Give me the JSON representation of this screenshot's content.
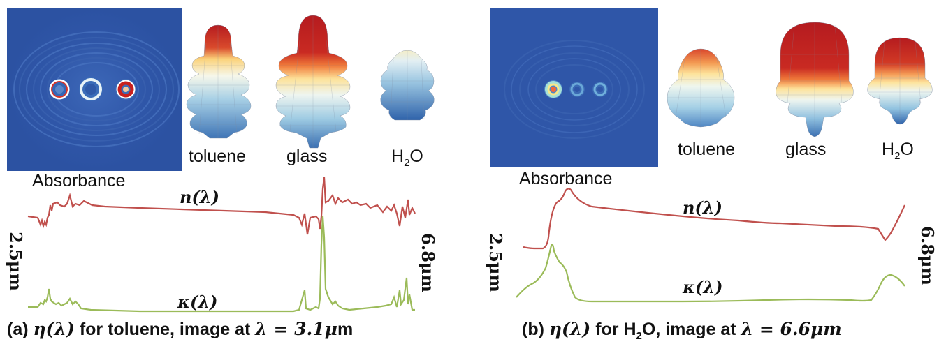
{
  "panel_a": {
    "absorbance_label": "Absorbance",
    "materials": [
      "toluene",
      "glass",
      "H",
      "O"
    ],
    "water_sub": "2",
    "left_wavelength": "2.5μm",
    "right_wavelength": "6.8μm",
    "n_label": "n(λ)",
    "k_label": "κ(λ)",
    "caption_prefix": "(a) ",
    "caption_eta": "η(λ)",
    "caption_mid": " for toluene, image at ",
    "caption_eq": "λ = 3.1μ",
    "caption_unit": "m"
  },
  "panel_b": {
    "absorbance_label": "Absorbance",
    "materials": [
      "toluene",
      "glass",
      "H",
      "O"
    ],
    "water_sub": "2",
    "left_wavelength": "2.5μm",
    "right_wavelength": "6.8μm",
    "n_label": "n(λ)",
    "k_label": "κ(λ)",
    "caption_prefix": "(b) ",
    "caption_eta": "η(λ)",
    "caption_mid": " for H",
    "caption_sub": "2",
    "caption_mid2": "O, image at ",
    "caption_eq": "λ = 6.6μm"
  },
  "colors": {
    "n_curve": "#c0504d",
    "k_curve": "#9bbb59",
    "field_bg": "#2f56a8"
  }
}
